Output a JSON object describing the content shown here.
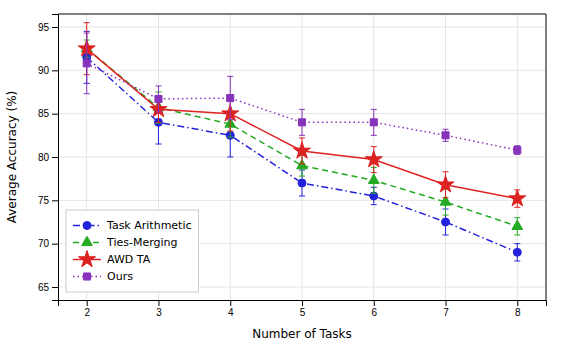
{
  "chart_data": {
    "type": "line",
    "xlabel": "Number of Tasks",
    "ylabel": "Average Accuracy (%)",
    "x": [
      2,
      3,
      4,
      5,
      6,
      7,
      8
    ],
    "series": [
      {
        "name": "Task Arithmetic",
        "color": "#2222dd",
        "marker": "circle",
        "line_style": "dashdot",
        "values": [
          91.5,
          84.0,
          82.5,
          77.0,
          75.5,
          72.5,
          69.0
        ],
        "errors": [
          3.0,
          2.5,
          2.5,
          1.5,
          1.0,
          1.5,
          1.0
        ]
      },
      {
        "name": "Ties-Merging",
        "color": "#22aa22",
        "marker": "triangle",
        "line_style": "dashed",
        "values": [
          92.5,
          85.7,
          83.8,
          79.0,
          77.3,
          74.8,
          72.0
        ],
        "errors": [
          1.0,
          1.8,
          1.5,
          1.2,
          1.5,
          1.5,
          1.0
        ]
      },
      {
        "name": "AWD TA",
        "color": "#dd2222",
        "marker": "star",
        "line_style": "solid",
        "values": [
          92.5,
          85.5,
          85.0,
          80.7,
          79.7,
          76.8,
          75.2
        ],
        "errors": [
          3.0,
          1.5,
          2.0,
          1.5,
          1.5,
          1.5,
          1.0
        ]
      },
      {
        "name": "Ours",
        "color": "#8833bb",
        "marker": "square",
        "line_style": "dotted",
        "values": [
          90.8,
          86.7,
          86.8,
          84.0,
          84.0,
          82.5,
          80.8
        ],
        "errors": [
          3.5,
          1.5,
          2.5,
          1.5,
          1.5,
          0.7,
          0.5
        ]
      }
    ],
    "xlim": [
      1.6,
      8.4
    ],
    "xticks": [
      2,
      3,
      4,
      5,
      6,
      7,
      8
    ],
    "ylim": [
      63.5,
      96.5
    ],
    "yticks": [
      65,
      70,
      75,
      80,
      85,
      90,
      95
    ],
    "grid": true,
    "legend": "lower left"
  }
}
